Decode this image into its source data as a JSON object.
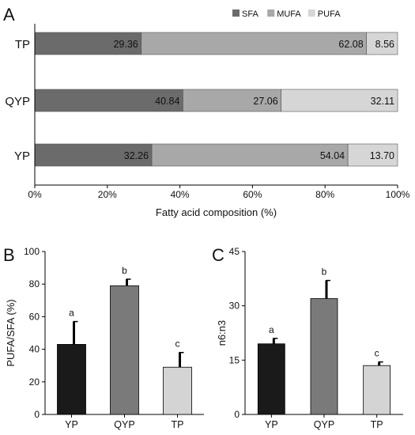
{
  "panels": {
    "a": {
      "letter": "A"
    },
    "b": {
      "letter": "B"
    },
    "c": {
      "letter": "C"
    }
  },
  "chart_data": [
    {
      "type": "bar",
      "orientation": "horizontal",
      "stacked": true,
      "categories": [
        "TP",
        "QYP",
        "YP"
      ],
      "series": [
        {
          "name": "SFA",
          "values": [
            29.36,
            40.84,
            32.26
          ],
          "color": "#6b6b6b"
        },
        {
          "name": "MUFA",
          "values": [
            62.08,
            27.06,
            54.04
          ],
          "color": "#a8a8a8"
        },
        {
          "name": "PUFA",
          "values": [
            8.56,
            32.11,
            13.7
          ],
          "color": "#d6d6d6"
        }
      ],
      "data_labels": [
        [
          "29.36",
          "62.08",
          "8.56"
        ],
        [
          "40.84",
          "27.06",
          "32.11"
        ],
        [
          "32.26",
          "54.04",
          "13.70"
        ]
      ],
      "xlabel": "Fatty acid composition (%)",
      "xlim": [
        0,
        100
      ],
      "xticks": [
        "0%",
        "20%",
        "40%",
        "60%",
        "80%",
        "100%"
      ],
      "legend": "top-right",
      "grid": false
    },
    {
      "type": "bar",
      "categories": [
        "YP",
        "QYP",
        "TP"
      ],
      "values": [
        43,
        79,
        29
      ],
      "errors": [
        14,
        4,
        9
      ],
      "letters": [
        "a",
        "b",
        "c"
      ],
      "colors": [
        "#1a1a1a",
        "#7a7a7a",
        "#d4d4d4"
      ],
      "ylabel": "PUFA/SFA (%)",
      "ylim": [
        0,
        100
      ],
      "yticks": [
        "0",
        "20",
        "40",
        "60",
        "80",
        "100"
      ],
      "grid": false
    },
    {
      "type": "bar",
      "categories": [
        "YP",
        "QYP",
        "TP"
      ],
      "values": [
        19.5,
        32,
        13.5
      ],
      "errors": [
        1.5,
        5,
        1
      ],
      "letters": [
        "a",
        "b",
        "c"
      ],
      "colors": [
        "#1a1a1a",
        "#7a7a7a",
        "#d4d4d4"
      ],
      "ylabel": "n6:n3",
      "ylim": [
        0,
        45
      ],
      "yticks": [
        "0",
        "15",
        "30",
        "45"
      ],
      "grid": false
    }
  ]
}
